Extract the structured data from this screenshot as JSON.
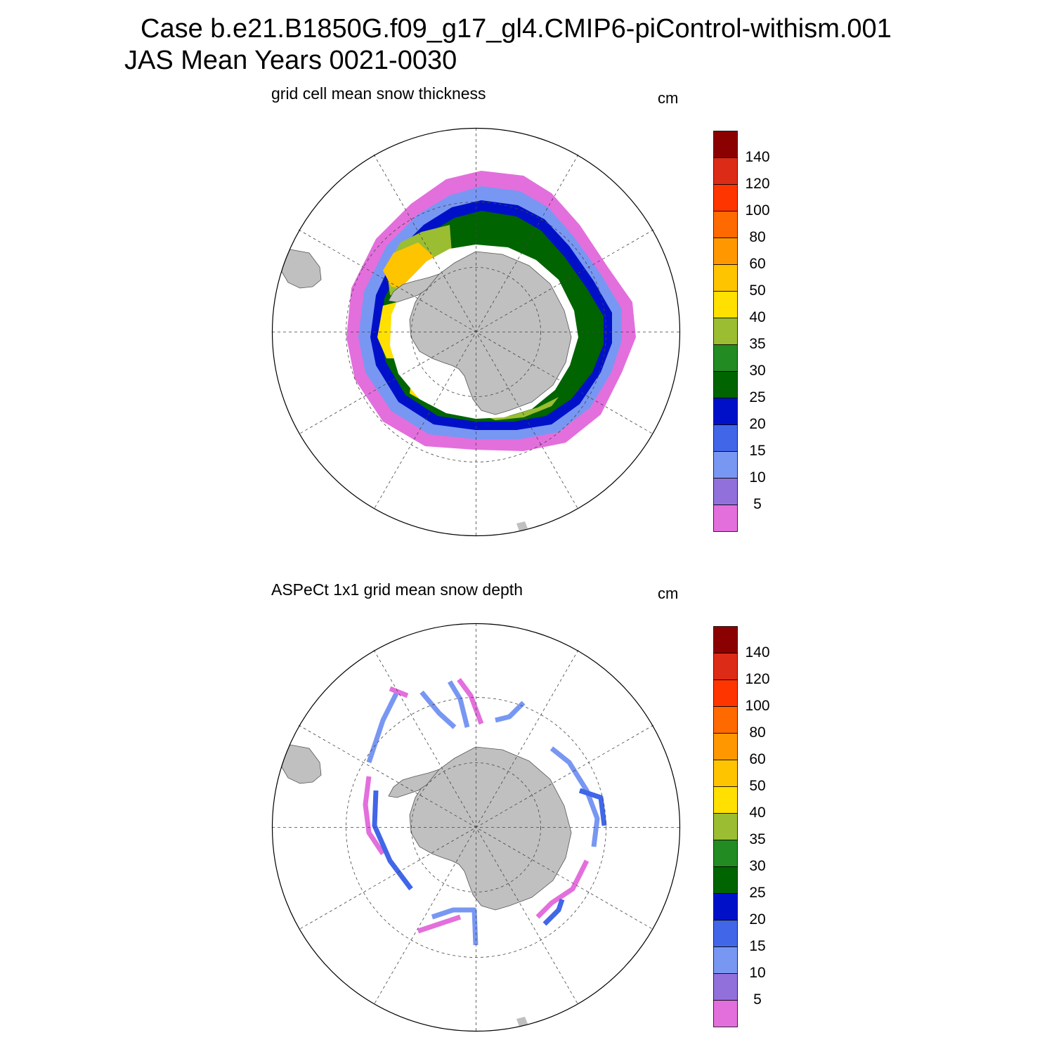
{
  "header": {
    "title_line1": "Case b.e21.B1850G.f09_g17_gl4.CMIP6-piControl-withism.001",
    "title_line2": "JAS Mean   Years 0021-0030"
  },
  "panels": [
    {
      "title": "grid cell mean snow thickness",
      "units": "cm"
    },
    {
      "title": "ASPeCt 1x1 grid mean snow depth",
      "units": "cm"
    }
  ],
  "colorbar": {
    "colors": [
      "#e36fdc",
      "#9270dc",
      "#7897f2",
      "#4166e8",
      "#0010c8",
      "#006400",
      "#228b22",
      "#9abd32",
      "#ffe000",
      "#ffc400",
      "#ff9800",
      "#ff6a00",
      "#ff3500",
      "#dc2b17",
      "#8b0000"
    ],
    "labels": [
      "5",
      "10",
      "15",
      "20",
      "25",
      "30",
      "35",
      "40",
      "50",
      "60",
      "80",
      "100",
      "120",
      "140"
    ]
  },
  "map_colors": {
    "land": "#c0c0c0",
    "ocean": "#ffffff"
  }
}
